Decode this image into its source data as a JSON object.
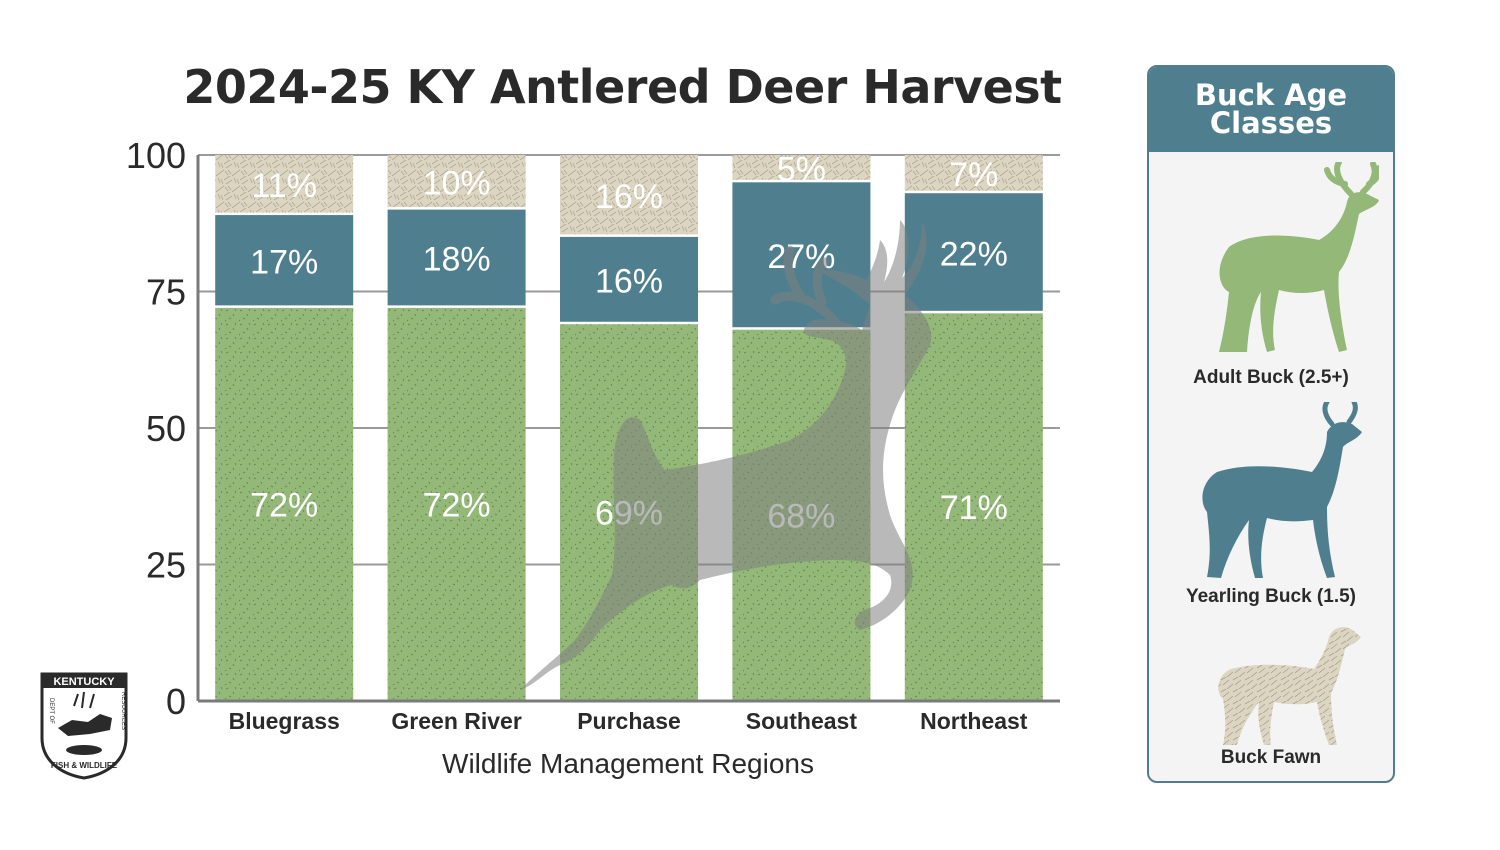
{
  "chart_data": {
    "type": "bar",
    "stacked": true,
    "title": "2024-25 KY Antlered Deer Harvest",
    "xlabel": "Wildlife Management Regions",
    "ylabel": "",
    "ylim": [
      0,
      100
    ],
    "yticks": [
      0,
      25,
      50,
      75,
      100
    ],
    "grid": true,
    "categories": [
      "Bluegrass",
      "Green River",
      "Purchase",
      "Southeast",
      "Northeast"
    ],
    "series": [
      {
        "name": "Adult Buck (2.5+)",
        "color": "#93b878",
        "values": [
          72,
          72,
          69,
          68,
          71
        ],
        "labels": [
          "72%",
          "72%",
          "69%",
          "68%",
          "71%"
        ]
      },
      {
        "name": "Yearling Buck (1.5)",
        "color": "#4f7f8f",
        "values": [
          17,
          18,
          16,
          27,
          22
        ],
        "labels": [
          "17%",
          "18%",
          "16%",
          "27%",
          "22%"
        ]
      },
      {
        "name": "Buck Fawn",
        "color": "#dcd5c2",
        "values": [
          11,
          10,
          16,
          5,
          7
        ],
        "labels": [
          "11%",
          "10%",
          "16%",
          "5%",
          "7%"
        ]
      }
    ]
  },
  "legend": {
    "title": "Buck Age Classes",
    "items": [
      {
        "label": "Adult Buck (2.5+)",
        "icon": "adult-buck-icon",
        "color": "#93b878"
      },
      {
        "label": "Yearling Buck (1.5)",
        "icon": "yearling-buck-icon",
        "color": "#4f7f8f"
      },
      {
        "label": "Buck Fawn",
        "icon": "buck-fawn-icon",
        "color": "#dcd5c2"
      }
    ]
  },
  "logo": {
    "name": "kentucky-fish-wildlife-logo",
    "text_top": "KENTUCKY",
    "text_left": "DEPT OF",
    "text_right": "RESOURCES",
    "text_bottom": "FISH & WILDLIFE"
  },
  "colors": {
    "title": "#2a2a2a",
    "grid": "#9a9a9a",
    "silhouette": "#808080"
  }
}
